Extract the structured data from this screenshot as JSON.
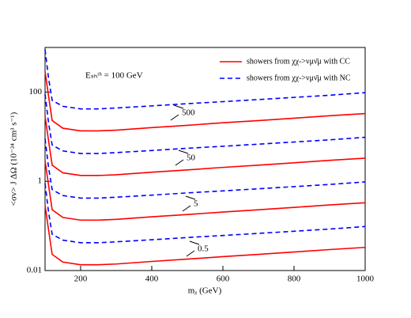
{
  "chart_data": {
    "type": "line",
    "x_label": "mᵪ (GeV)",
    "y_label": "<σv> J ΔΩ (10⁻²⁴ cm³ s⁻¹)",
    "annotation": "Eₛₕᵗʰ = 100 GeV",
    "x": [
      100,
      110,
      120,
      150,
      200,
      250,
      300,
      400,
      500,
      600,
      700,
      800,
      900,
      1000
    ],
    "series": [
      {
        "name": "showers from χχ->νμν̄μ with CC",
        "color": "#ff0000",
        "dash": "solid",
        "values": [
          290,
          80,
          23,
          15.5,
          13.5,
          13.5,
          14,
          16,
          18,
          20.5,
          23,
          26,
          29.5,
          33
        ]
      },
      {
        "name": "showers from χχ->νμν̄μ with NC",
        "color": "#0000ff",
        "dash": "dashed",
        "values": [
          900,
          200,
          65,
          48,
          42,
          42,
          44,
          49,
          55,
          61,
          68,
          76,
          85,
          97
        ]
      },
      {
        "color": "#ff0000",
        "dash": "solid",
        "values": [
          29,
          8,
          2.3,
          1.55,
          1.35,
          1.35,
          1.4,
          1.6,
          1.8,
          2.05,
          2.3,
          2.6,
          2.95,
          3.3
        ]
      },
      {
        "color": "#0000ff",
        "dash": "dashed",
        "values": [
          90,
          20,
          6.5,
          4.8,
          4.2,
          4.2,
          4.4,
          4.9,
          5.5,
          6.1,
          6.8,
          7.6,
          8.5,
          9.7
        ]
      },
      {
        "color": "#ff0000",
        "dash": "solid",
        "values": [
          2.9,
          0.8,
          0.23,
          0.155,
          0.135,
          0.135,
          0.14,
          0.16,
          0.18,
          0.205,
          0.23,
          0.26,
          0.295,
          0.33
        ]
      },
      {
        "color": "#0000ff",
        "dash": "dashed",
        "values": [
          9,
          2,
          0.65,
          0.48,
          0.42,
          0.42,
          0.44,
          0.49,
          0.55,
          0.61,
          0.68,
          0.76,
          0.85,
          0.97
        ]
      },
      {
        "color": "#ff0000",
        "dash": "solid",
        "values": [
          0.29,
          0.08,
          0.023,
          0.0155,
          0.0135,
          0.0135,
          0.014,
          0.016,
          0.018,
          0.0205,
          0.023,
          0.026,
          0.0295,
          0.033
        ]
      },
      {
        "color": "#0000ff",
        "dash": "dashed",
        "values": [
          0.9,
          0.2,
          0.065,
          0.048,
          0.042,
          0.042,
          0.044,
          0.049,
          0.055,
          0.061,
          0.068,
          0.076,
          0.085,
          0.097
        ]
      }
    ],
    "curve_labels": [
      "500",
      "50",
      "5",
      "0.5"
    ],
    "xlim": [
      100,
      1000
    ],
    "xticks": [
      200,
      400,
      600,
      800,
      1000
    ],
    "ylim": [
      0.01,
      1000
    ],
    "yticks": [
      0.01,
      1,
      100
    ],
    "log_y": true,
    "legend": "upper right"
  }
}
